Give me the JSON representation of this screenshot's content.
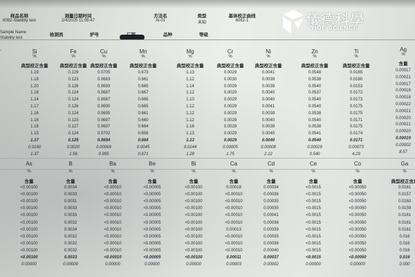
{
  "header": {
    "labels": [
      "样品名称",
      "测量日期时间",
      "方法名",
      "类型",
      "基体校正曲线"
    ],
    "values": [
      "6082-Stability test",
      "2/4/2025 11:08:47",
      "Al-01",
      "未知",
      "6082-1"
    ],
    "labels2": [
      "Sample Name",
      "检测员",
      "炉号",
      "厂家",
      "品种",
      "等级"
    ],
    "sample_name": "Stability test"
  },
  "logo": {
    "cn": "儀德科學",
    "en": "YIDE SCIENCE"
  },
  "top_table": {
    "row_label": "-",
    "columns": [
      {
        "el": "Si",
        "unit": "%",
        "type": "典型校正含量",
        "values": [
          "1.19",
          "1.18",
          "1.20",
          "1.18",
          "1.14",
          "1.17",
          "1.16",
          "1.16",
          "1.18",
          "1.15",
          "1.17",
          "0.0160",
          "1.37"
        ]
      },
      {
        "el": "Fe",
        "unit": "%",
        "type": "典型校正含量",
        "values": [
          "0.129",
          "0.123",
          "0.126",
          "0.124",
          "0.124",
          "0.126",
          "0.124",
          "0.123",
          "0.127",
          "0.124",
          "0.125",
          "0.0020",
          "1.56"
        ]
      },
      {
        "el": "Cu",
        "unit": "%",
        "type": "典型校正含量",
        "values": [
          "0.0705",
          "0.0683",
          "0.0693",
          "0.0687",
          "0.0687",
          "0.0690",
          "0.0695",
          "0.0697",
          "0.0697",
          "0.0702",
          "0.0694",
          "0.00069",
          "0.995"
        ]
      },
      {
        "el": "Mn",
        "unit": "%",
        "type": "典型校正含量",
        "values": [
          "0.673",
          "0.661",
          "0.665",
          "0.667",
          "0.665",
          "0.665",
          "0.661",
          "0.660",
          "0.664",
          "0.656",
          "0.664",
          "0.0045",
          "0.671"
        ]
      },
      {
        "el": "Mg",
        "unit": "%",
        "type": "典型校正含量",
        "values": [
          "1.13",
          "1.12",
          "1.14",
          "1.12",
          "1.10",
          "1.12",
          "1.12",
          "1.12",
          "1.16",
          "1.13",
          "1.13",
          "0.0144",
          "1.28"
        ]
      },
      {
        "el": "Cr",
        "unit": "%",
        "type": "典型校正含量",
        "values": [
          "0.0029",
          "0.0030",
          "0.0029",
          "0.0029",
          "0.0029",
          "0.0029",
          "0.0029",
          "0.0029",
          "0.0028",
          "0.0029",
          "0.0029",
          "0.00005",
          "1.75"
        ]
      },
      {
        "el": "Ni",
        "unit": "%",
        "type": "典型校正含量",
        "values": [
          "0.0041",
          "0.0039",
          "0.0039",
          "0.0040",
          "0.0040",
          "0.0041",
          "0.0039",
          "0.0040",
          "0.0039",
          "0.0040",
          "0.0040",
          "0.00008",
          "2.12"
        ]
      },
      {
        "el": "Zn",
        "unit": "%",
        "type": "典型校正含量",
        "values": [
          "0.0548",
          "0.0538",
          "0.0540",
          "0.0537",
          "0.0540",
          "0.0540",
          "0.0538",
          "0.0540",
          "0.0538",
          "0.0541",
          "0.0540",
          "0.00029",
          "0.540"
        ]
      },
      {
        "el": "Ti",
        "unit": "%",
        "type": "典型校正含量",
        "values": [
          "0.0165",
          "0.0180",
          "0.0153",
          "0.0172",
          "0.0173",
          "0.0175",
          "0.0175",
          "0.0171",
          "0.0175",
          "0.0174",
          "0.0171",
          "0.00073",
          "4.29"
        ]
      },
      {
        "el": "Ag",
        "unit": "%",
        "type": "含量",
        "values": [
          "0.00017",
          "0.00021",
          "0.00017",
          "0.00019",
          "0.00018",
          "0.00022",
          "0.00021",
          "0.00020",
          "0.00021",
          "0.00020",
          "0.00019",
          "0.00002",
          "8.57"
        ]
      }
    ]
  },
  "bottom_table": {
    "columns": [
      {
        "el": "As",
        "unit": "%",
        "type": "含量",
        "values": [
          "<0.00100",
          "<0.00100",
          "<0.00100",
          "<0.00100",
          "<0.00100",
          "<0.00100",
          "<0.00100",
          "<0.00100",
          "<0.00100",
          "<0.00100",
          "<0.00100",
          "0.00000"
        ]
      },
      {
        "el": "B",
        "unit": "%",
        "type": "含量",
        "values": [
          "0.0034",
          "0.0033",
          "0.0031",
          "0.0033",
          "0.0033",
          "0.0032",
          "0.0034",
          "0.0032",
          "0.0032",
          "0.0032",
          "0.0033",
          "0.00009"
        ]
      },
      {
        "el": "Ba",
        "unit": "%",
        "type": "含量",
        "values": [
          "<0.00010",
          "<0.00010",
          "<0.00010",
          "<0.00010",
          "<0.00010",
          "<0.00010",
          "<0.00010",
          "<0.00010",
          "<0.00010",
          "<0.00010",
          "<0.00010",
          "0.00000"
        ]
      },
      {
        "el": "Be",
        "unit": "%",
        "type": "含量",
        "values": [
          "<0.00005",
          "<0.00005",
          "<0.00005",
          "<0.00005",
          "<0.00005",
          "<0.00005",
          "<0.00005",
          "<0.00005",
          "<0.00005",
          "<0.00005",
          "<0.00005",
          "0.00000"
        ]
      },
      {
        "el": "Bi",
        "unit": "%",
        "type": "含量",
        "values": [
          "<0.00100",
          "<0.00100",
          "<0.00100",
          "<0.00100",
          "<0.00100",
          "<0.00100",
          "<0.00100",
          "<0.00100",
          "<0.00100",
          "<0.00100",
          "<0.00100",
          "0.00000"
        ]
      },
      {
        "el": "Ca",
        "unit": "%",
        "type": "含量",
        "values": [
          "0.00018",
          "<0.00010",
          "<0.00010",
          "<0.00010",
          "<0.00010",
          "<0.00010",
          "0.00013",
          "<0.00010",
          "<0.00010",
          "<0.00010",
          "0.00011",
          "0.00003"
        ]
      },
      {
        "el": "Cd",
        "unit": "%",
        "type": "含量",
        "values": [
          "0.00034",
          "0.00036",
          "0.00035",
          "0.00035",
          "0.00041",
          "0.00036",
          "0.00039",
          "0.00035",
          "0.00038",
          "0.00040",
          "0.00037",
          "0.00002"
        ]
      },
      {
        "el": "Ce",
        "unit": "%",
        "type": "含量",
        "values": [
          "<0.0015",
          "<0.0015",
          "<0.0015",
          "<0.0015",
          "<0.0015",
          "<0.0015",
          "<0.0015",
          "<0.0015",
          "<0.0015",
          "<0.0015",
          "<0.0015",
          "0.00000"
        ]
      },
      {
        "el": "Co",
        "unit": "%",
        "type": "含量",
        "values": [
          "<0.00050",
          "<0.00050",
          "<0.00050",
          "<0.00050",
          "<0.00050",
          "<0.00050",
          "<0.00050",
          "<0.00050",
          "<0.00050",
          "<0.00050",
          "<0.00050",
          "0.00000"
        ]
      },
      {
        "el": "Ga",
        "unit": "%",
        "type": "典型校正含量",
        "values": [
          "0.0161",
          "0.0157",
          "0.0160",
          "0.0159",
          "0.0161",
          "0.0161",
          "0.0161",
          "0.016",
          "0.016",
          "0.016",
          "0.016",
          "0.000"
        ]
      }
    ]
  }
}
